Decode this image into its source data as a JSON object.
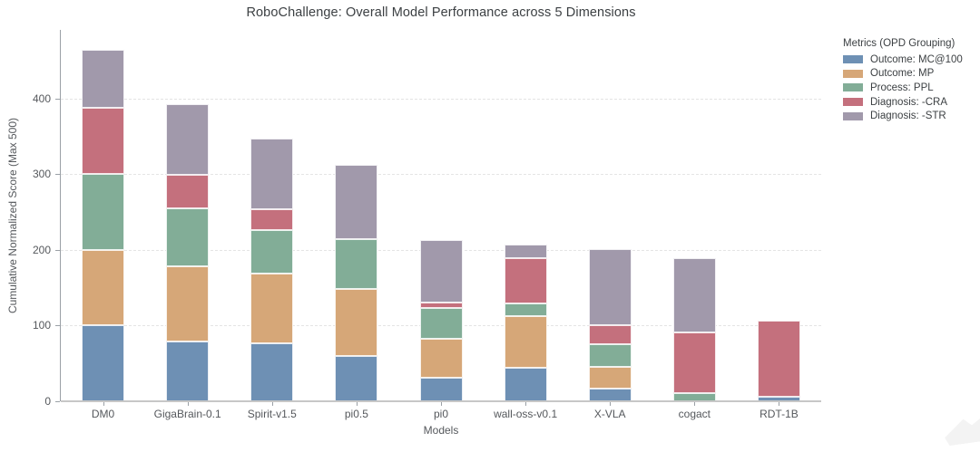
{
  "title": "RoboChallenge: Overall Model Performance across 5 Dimensions",
  "chart_data": {
    "type": "bar",
    "stacked": true,
    "title": "RoboChallenge: Overall Model Performance across 5 Dimensions",
    "xlabel": "Models",
    "ylabel": "Cumulative Normalized Score (Max 500)",
    "ylim": [
      0,
      491
    ],
    "yticks": [
      0,
      100,
      200,
      300,
      400
    ],
    "grid": "horizontal-dashed",
    "legend_title": "Metrics (OPD Grouping)",
    "legend_position": "outside-top-right",
    "categories": [
      "DM0",
      "GigaBrain-0.1",
      "Spirit-v1.5",
      "pi0.5",
      "pi0",
      "wall-oss-v0.1",
      "X-VLA",
      "cogact",
      "RDT-1B"
    ],
    "series": [
      {
        "name": "Outcome: MC@100",
        "color": "#6e90b4",
        "values": [
          100,
          79,
          77,
          60,
          31,
          44,
          17,
          0,
          6
        ]
      },
      {
        "name": "Outcome: MP",
        "color": "#d6a778",
        "values": [
          100,
          99,
          92,
          88,
          52,
          68,
          29,
          0,
          0
        ]
      },
      {
        "name": "Process: PPL",
        "color": "#82ad97",
        "values": [
          100,
          77,
          57,
          66,
          40,
          17,
          30,
          11,
          0
        ]
      },
      {
        "name": "Diagnosis: -CRA",
        "color": "#c4707d",
        "values": [
          88,
          44,
          28,
          0,
          7,
          60,
          25,
          80,
          101
        ]
      },
      {
        "name": "Diagnosis: -STR",
        "color": "#a199ab",
        "values": [
          77,
          94,
          93,
          99,
          83,
          18,
          100,
          98,
          0
        ]
      }
    ]
  },
  "colors": {
    "background": "#ffffff",
    "title_text": "#3c4043",
    "tick_text": "#55585c",
    "gridline": "#e4e4e4",
    "spine": "#9aa0a6"
  }
}
